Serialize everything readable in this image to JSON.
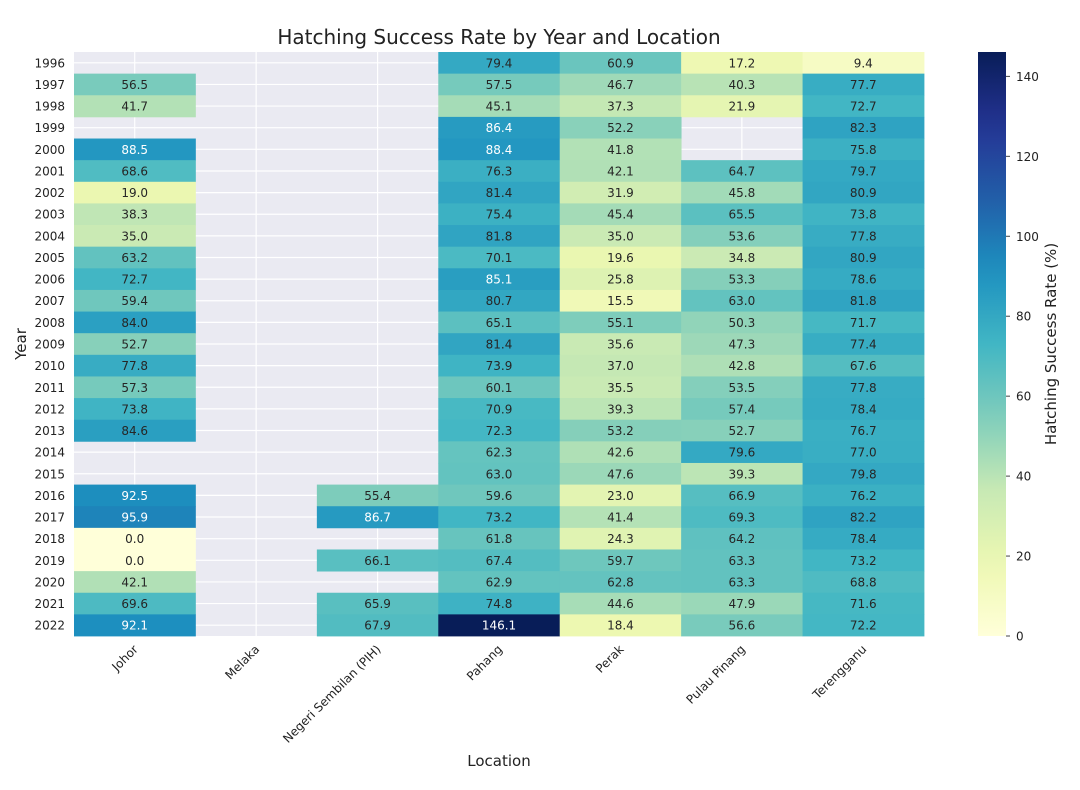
{
  "chart_data": {
    "type": "heatmap",
    "title": "Hatching Success Rate by Year and Location",
    "xlabel": "Location",
    "ylabel": "Year",
    "colorbar_label": "Hatching Success Rate (%)",
    "colormap": "YlGnBu",
    "color_range": [
      0,
      146.1
    ],
    "colorbar_ticks": [
      0,
      20,
      40,
      60,
      80,
      100,
      120,
      140
    ],
    "x": [
      "Johor",
      "Melaka",
      "Negeri Sembilan (PIH)",
      "Pahang",
      "Perak",
      "Pulau Pinang",
      "Terengganu"
    ],
    "y": [
      "1996",
      "1997",
      "1998",
      "1999",
      "2000",
      "2001",
      "2002",
      "2003",
      "2004",
      "2005",
      "2006",
      "2007",
      "2008",
      "2009",
      "2010",
      "2011",
      "2012",
      "2013",
      "2014",
      "2015",
      "2016",
      "2017",
      "2018",
      "2019",
      "2020",
      "2021",
      "2022"
    ],
    "values": [
      [
        null,
        null,
        null,
        79.4,
        60.9,
        17.2,
        9.4
      ],
      [
        56.5,
        null,
        null,
        57.5,
        46.7,
        40.3,
        77.7
      ],
      [
        41.7,
        null,
        null,
        45.1,
        37.3,
        21.9,
        72.7
      ],
      [
        null,
        null,
        null,
        86.4,
        52.2,
        null,
        82.3
      ],
      [
        88.5,
        null,
        null,
        88.4,
        41.8,
        null,
        75.8
      ],
      [
        68.6,
        null,
        null,
        76.3,
        42.1,
        64.7,
        79.7
      ],
      [
        19.0,
        null,
        null,
        81.4,
        31.9,
        45.8,
        80.9
      ],
      [
        38.3,
        null,
        null,
        75.4,
        45.4,
        65.5,
        73.8
      ],
      [
        35.0,
        null,
        null,
        81.8,
        35.0,
        53.6,
        77.8
      ],
      [
        63.2,
        null,
        null,
        70.1,
        19.6,
        34.8,
        80.9
      ],
      [
        72.7,
        null,
        null,
        85.1,
        25.8,
        53.3,
        78.6
      ],
      [
        59.4,
        null,
        null,
        80.7,
        15.5,
        63.0,
        81.8
      ],
      [
        84.0,
        null,
        null,
        65.1,
        55.1,
        50.3,
        71.7
      ],
      [
        52.7,
        null,
        null,
        81.4,
        35.6,
        47.3,
        77.4
      ],
      [
        77.8,
        null,
        null,
        73.9,
        37.0,
        42.8,
        67.6
      ],
      [
        57.3,
        null,
        null,
        60.1,
        35.5,
        53.5,
        77.8
      ],
      [
        73.8,
        null,
        null,
        70.9,
        39.3,
        57.4,
        78.4
      ],
      [
        84.6,
        null,
        null,
        72.3,
        53.2,
        52.7,
        76.7
      ],
      [
        null,
        null,
        null,
        62.3,
        42.6,
        79.6,
        77.0
      ],
      [
        null,
        null,
        null,
        63.0,
        47.6,
        39.3,
        79.8
      ],
      [
        92.5,
        null,
        55.4,
        59.6,
        23.0,
        66.9,
        76.2
      ],
      [
        95.9,
        null,
        86.7,
        73.2,
        41.4,
        69.3,
        82.2
      ],
      [
        0.0,
        null,
        null,
        61.8,
        24.3,
        64.2,
        78.4
      ],
      [
        0.0,
        null,
        66.1,
        67.4,
        59.7,
        63.3,
        73.2
      ],
      [
        42.1,
        null,
        null,
        62.9,
        62.8,
        63.3,
        68.8
      ],
      [
        69.6,
        null,
        65.9,
        74.8,
        44.6,
        47.9,
        71.6
      ],
      [
        92.1,
        null,
        67.9,
        146.1,
        18.4,
        56.6,
        72.2
      ]
    ],
    "value_format": "0.1f",
    "missing_color": "#eaeaf2",
    "grid": true
  }
}
